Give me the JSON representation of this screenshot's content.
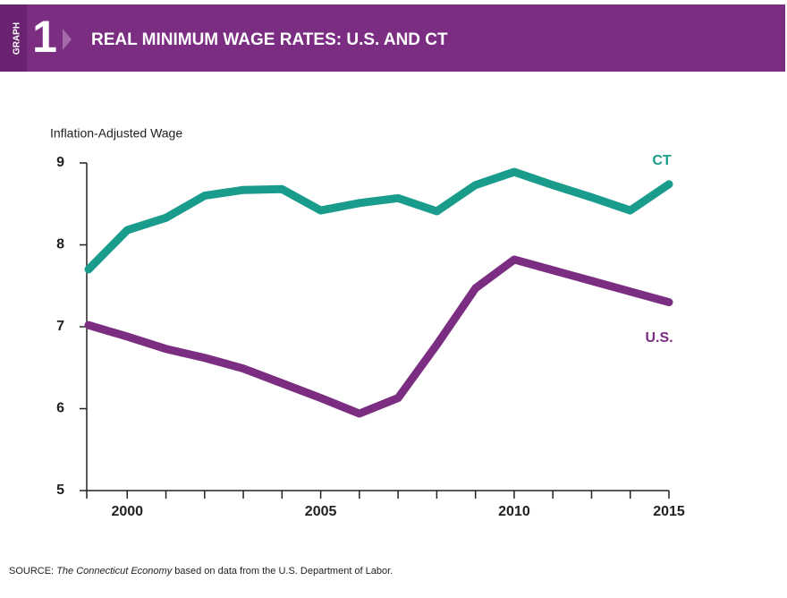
{
  "chart_data": {
    "type": "line",
    "graph_label": "GRAPH",
    "graph_number": "1",
    "title": "REAL MINIMUM WAGE RATES: U.S. AND CT",
    "y_label": "Inflation-Adjusted Wage",
    "categories": [
      null,
      "2000",
      null,
      null,
      null,
      null,
      "2005",
      null,
      null,
      null,
      null,
      "2010",
      null,
      null,
      null,
      "2015"
    ],
    "series": [
      {
        "name": "CT",
        "color": "#1a9c8c",
        "values": [
          7.7,
          8.18,
          8.33,
          8.6,
          8.67,
          8.68,
          8.42,
          8.51,
          8.57,
          8.41,
          8.73,
          8.89,
          8.73,
          8.58,
          8.42,
          8.74
        ]
      },
      {
        "name": "U.S.",
        "color": "#7b2d82",
        "values": [
          7.02,
          6.88,
          6.73,
          6.62,
          6.49,
          6.31,
          6.13,
          5.94,
          6.13,
          6.78,
          7.47,
          7.82,
          7.69,
          7.56,
          7.43,
          7.3
        ]
      }
    ],
    "ylim": [
      5,
      9
    ],
    "yticks": [
      5,
      6,
      7,
      8,
      9
    ],
    "grid": false,
    "source": {
      "label": "SOURCE:",
      "publication": "The Connecticut Economy",
      "text": "based on data from the U.S. Department of Labor."
    }
  }
}
